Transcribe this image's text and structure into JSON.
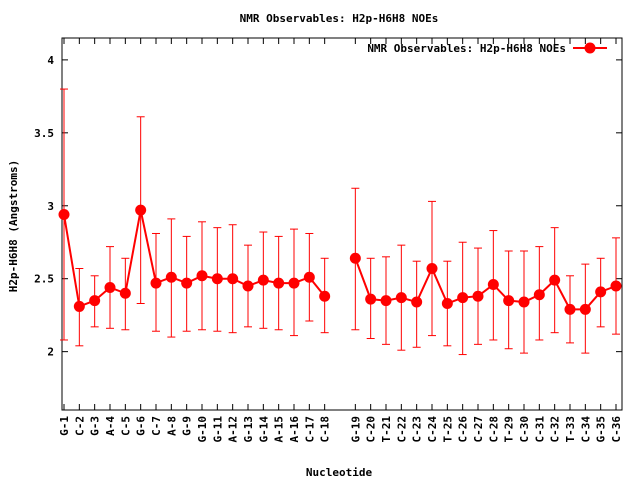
{
  "chart_data": {
    "type": "line",
    "title": "NMR Observables: H2p-H6H8 NOEs",
    "xlabel": "Nucleotide",
    "ylabel": "H2p-H6H8 (Angstroms)",
    "ylim": [
      1.6,
      4.15
    ],
    "yticks": [
      "2",
      "2.5",
      "3",
      "3.5",
      "4"
    ],
    "ytick_values": [
      2,
      2.5,
      3,
      3.5,
      4
    ],
    "grid": false,
    "legend_position": "top-right",
    "color": "#ff0000",
    "categories": [
      "G-1",
      "C-2",
      "G-3",
      "A-4",
      "C-5",
      "G-6",
      "C-7",
      "A-8",
      "G-9",
      "G-10",
      "G-11",
      "A-12",
      "G-13",
      "G-14",
      "A-15",
      "A-16",
      "C-17",
      "C-18",
      "",
      "G-19",
      "C-20",
      "T-21",
      "C-22",
      "C-23",
      "C-24",
      "T-25",
      "C-26",
      "C-27",
      "C-28",
      "T-29",
      "C-30",
      "C-31",
      "C-32",
      "T-33",
      "C-34",
      "G-35",
      "C-36"
    ],
    "series": [
      {
        "name": "NMR Observables: H2p-H6H8 NOEs",
        "values": [
          2.94,
          2.31,
          2.35,
          2.44,
          2.4,
          2.97,
          2.47,
          2.51,
          2.47,
          2.52,
          2.5,
          2.5,
          2.45,
          2.49,
          2.47,
          2.47,
          2.51,
          2.38,
          null,
          2.64,
          2.36,
          2.35,
          2.37,
          2.34,
          2.57,
          2.33,
          2.37,
          2.38,
          2.46,
          2.35,
          2.34,
          2.39,
          2.49,
          2.29,
          2.29,
          2.41,
          2.45
        ],
        "error_low": [
          2.08,
          2.04,
          2.17,
          2.16,
          2.15,
          2.33,
          2.14,
          2.1,
          2.14,
          2.15,
          2.14,
          2.13,
          2.17,
          2.16,
          2.15,
          2.11,
          2.21,
          2.13,
          null,
          2.15,
          2.09,
          2.05,
          2.01,
          2.03,
          2.11,
          2.04,
          1.98,
          2.05,
          2.08,
          2.02,
          1.99,
          2.08,
          2.13,
          2.06,
          1.99,
          2.17,
          2.12
        ],
        "error_high": [
          3.8,
          2.57,
          2.52,
          2.72,
          2.64,
          3.61,
          2.81,
          2.91,
          2.79,
          2.89,
          2.85,
          2.87,
          2.73,
          2.82,
          2.79,
          2.84,
          2.81,
          2.64,
          null,
          3.12,
          2.64,
          2.65,
          2.73,
          2.62,
          3.03,
          2.62,
          2.75,
          2.71,
          2.83,
          2.69,
          2.69,
          2.72,
          2.85,
          2.52,
          2.6,
          2.64,
          2.78
        ]
      }
    ]
  }
}
